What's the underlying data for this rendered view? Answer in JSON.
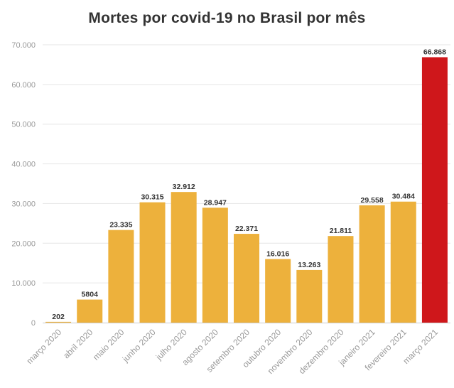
{
  "chart_data": {
    "type": "bar",
    "title": "Mortes por covid-19 no Brasil por mês",
    "xlabel": "",
    "ylabel": "",
    "ylim": [
      0,
      70000
    ],
    "y_ticks": [
      0,
      10000,
      20000,
      30000,
      40000,
      50000,
      60000,
      70000
    ],
    "y_tick_labels": [
      "0",
      "10.000",
      "20.000",
      "30.000",
      "40.000",
      "50.000",
      "60.000",
      "70.000"
    ],
    "categories": [
      "março 2020",
      "abril 2020",
      "maio 2020",
      "junho 2020",
      "julho 2020",
      "agosto 2020",
      "setembro 2020",
      "outubro 2020",
      "novembro 2020",
      "dezembro 2020",
      "janeiro 2021",
      "fevereiro 2021",
      "março 2021"
    ],
    "values": [
      202,
      5804,
      23335,
      30315,
      32912,
      28947,
      22371,
      16016,
      13263,
      21811,
      29558,
      30484,
      66868
    ],
    "data_labels": [
      "202",
      "5804",
      "23.335",
      "30.315",
      "32.912",
      "28.947",
      "22.371",
      "16.016",
      "13.263",
      "21.811",
      "29.558",
      "30.484",
      "66.868"
    ],
    "bar_colors": [
      "#edb13c",
      "#edb13c",
      "#edb13c",
      "#edb13c",
      "#edb13c",
      "#edb13c",
      "#edb13c",
      "#edb13c",
      "#edb13c",
      "#edb13c",
      "#edb13c",
      "#edb13c",
      "#cf171b"
    ],
    "grid": true
  }
}
